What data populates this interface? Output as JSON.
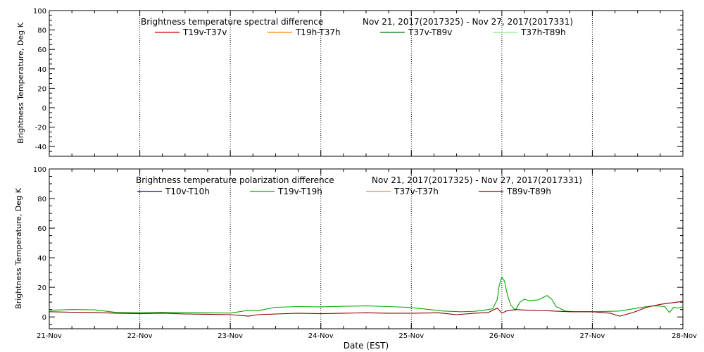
{
  "chart_data": [
    {
      "type": "line",
      "title": "Brightness temperature spectral difference",
      "date_range": "Nov 21, 2017(2017325) - Nov 27, 2017(2017331)",
      "ylabel": "Brightness Temperature, Deg K",
      "xlabel": "",
      "ylim": [
        -50,
        100
      ],
      "xlim": [
        0,
        7
      ],
      "yticks": [
        -40,
        -20,
        0,
        20,
        40,
        60,
        80,
        100
      ],
      "grid": "vertical dotted at day boundaries",
      "legend_placement": "top",
      "series": [
        {
          "name": "T19v-T37v",
          "color": "#cc0000",
          "x": [],
          "y": []
        },
        {
          "name": "T19h-T37h",
          "color": "#ff8800",
          "x": [],
          "y": []
        },
        {
          "name": "T37v-T89v",
          "color": "#007700",
          "x": [],
          "y": []
        },
        {
          "name": "T37h-T89h",
          "color": "#88ee88",
          "x": [],
          "y": []
        }
      ]
    },
    {
      "type": "line",
      "title": "Brightness temperature polarization difference",
      "date_range": "Nov 21, 2017(2017325) - Nov 27, 2017(2017331)",
      "ylabel": "Brightness Temperature, Deg K",
      "xlabel": "Date (EST)",
      "ylim": [
        -8,
        100
      ],
      "xlim": [
        0,
        7
      ],
      "yticks": [
        0,
        20,
        40,
        60,
        80,
        100
      ],
      "xtick_labels": [
        "21-Nov",
        "22-Nov",
        "23-Nov",
        "24-Nov",
        "25-Nov",
        "26-Nov",
        "27-Nov",
        "28-Nov"
      ],
      "grid": "vertical dotted at day boundaries",
      "legend_placement": "top",
      "series": [
        {
          "name": "T10v-T10h",
          "color": "#0000bb",
          "x": [],
          "y": []
        },
        {
          "name": "T19v-T19h",
          "color": "#00aa00",
          "x": [
            0,
            0.25,
            0.5,
            0.75,
            1.0,
            1.25,
            1.5,
            1.75,
            2.0,
            2.1,
            2.2,
            2.3,
            2.5,
            2.75,
            3.0,
            3.25,
            3.5,
            3.75,
            3.95,
            4.05,
            4.2,
            4.35,
            4.55,
            4.7,
            4.8,
            4.9,
            4.95,
            4.97,
            5.0,
            5.03,
            5.06,
            5.1,
            5.15,
            5.2,
            5.25,
            5.3,
            5.4,
            5.45,
            5.5,
            5.55,
            5.6,
            5.7,
            5.8,
            6.0,
            6.2,
            6.3,
            6.4,
            6.5,
            6.6,
            6.7,
            6.8,
            6.85,
            6.9,
            6.95,
            7.0
          ],
          "y": [
            4.5,
            5.0,
            4.8,
            3.0,
            3.0,
            3.2,
            3.0,
            2.8,
            2.6,
            3.5,
            4.5,
            4.2,
            6.5,
            7.0,
            6.8,
            7.2,
            7.5,
            7.0,
            6.5,
            6.0,
            5.0,
            4.0,
            3.5,
            3.8,
            4.5,
            5.5,
            12.0,
            21.0,
            27.0,
            24.0,
            15.0,
            8.0,
            4.5,
            10.0,
            12.0,
            11.0,
            11.5,
            13.0,
            14.5,
            12.0,
            7.0,
            4.0,
            3.5,
            3.5,
            3.8,
            4.0,
            5.0,
            6.0,
            7.0,
            7.5,
            7.0,
            3.0,
            6.5,
            6.0,
            7.0
          ]
        },
        {
          "name": "T37v-T37h",
          "color": "#ff8800",
          "x": [],
          "y": []
        },
        {
          "name": "T89v-T89h",
          "color": "#8b0000",
          "x": [
            0,
            0.25,
            0.5,
            0.75,
            1.0,
            1.25,
            1.5,
            1.75,
            2.0,
            2.2,
            2.3,
            2.5,
            2.75,
            3.0,
            3.25,
            3.5,
            3.75,
            4.0,
            4.3,
            4.5,
            4.7,
            4.85,
            4.95,
            5.0,
            5.05,
            5.15,
            5.3,
            5.5,
            5.75,
            6.0,
            6.2,
            6.3,
            6.45,
            6.6,
            6.75,
            7.0
          ],
          "y": [
            3.5,
            3.2,
            3.0,
            2.5,
            2.2,
            2.5,
            2.0,
            1.8,
            1.5,
            0.5,
            1.5,
            2.0,
            2.5,
            2.2,
            2.5,
            2.8,
            2.5,
            2.5,
            2.8,
            1.5,
            2.5,
            3.0,
            6.0,
            2.5,
            4.0,
            5.0,
            4.5,
            4.2,
            3.5,
            3.5,
            2.5,
            0.5,
            3.0,
            6.5,
            8.5,
            10.5
          ]
        }
      ]
    }
  ]
}
